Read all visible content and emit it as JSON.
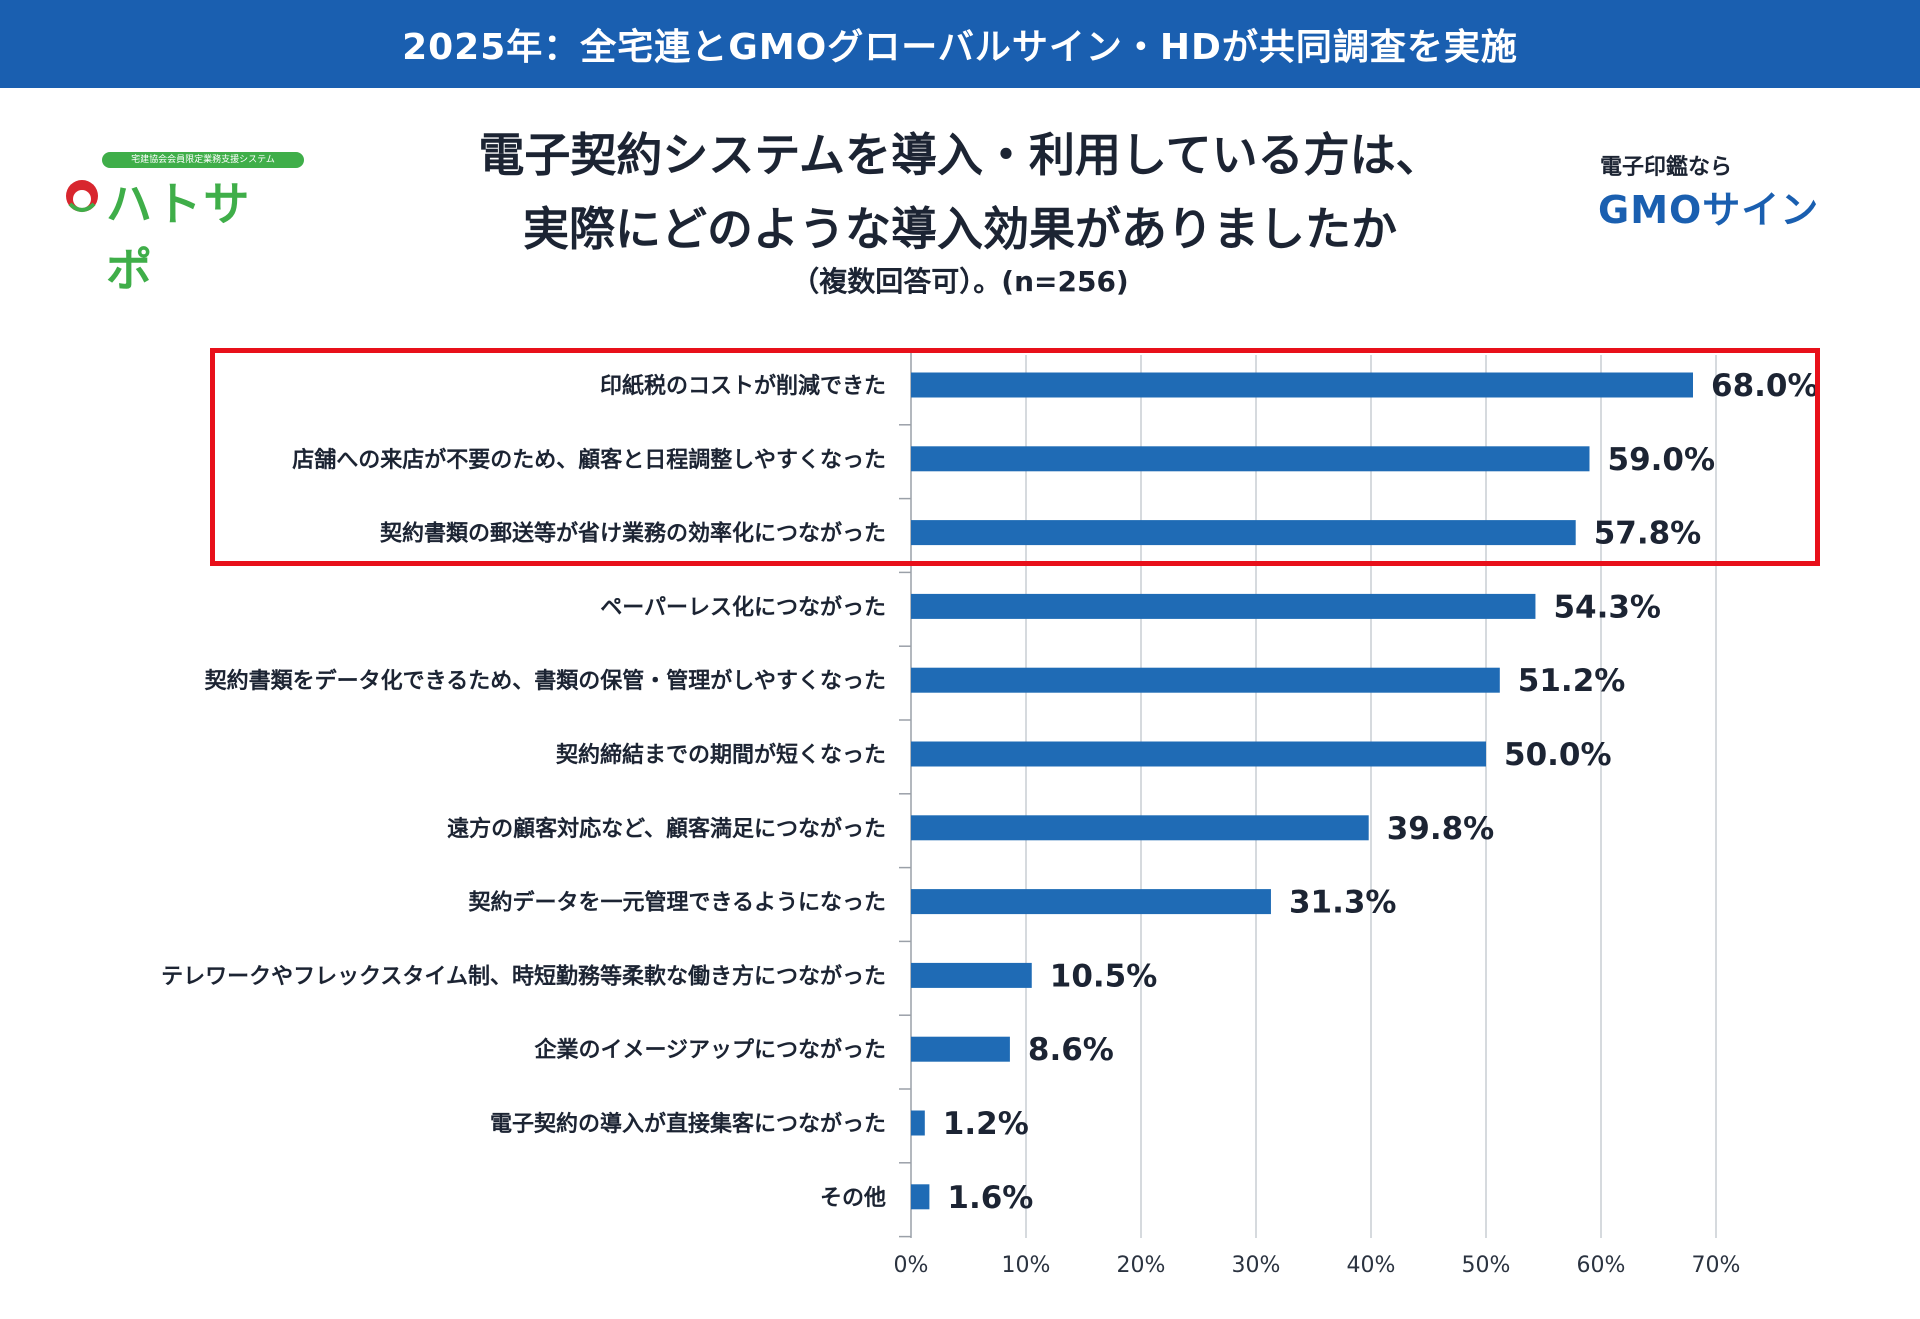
{
  "header": {
    "banner": "2025年：全宅連とGMOグローバルサイン・HDが共同調査を実施",
    "title_line1": "電子契約システムを導入・利用している方は、",
    "title_line2": "実際にどのような導入効果がありましたか",
    "subtitle": "（複数回答可）。(n=256)"
  },
  "logos": {
    "left_tagline": "宅建協会会員限定業務支援システム",
    "left_name": "ハトサポ",
    "right_sub": "電子印鑑なら",
    "right_main": "GMOサイン"
  },
  "colors": {
    "banner": "#1a5fb0",
    "bar": "#1f6bb5",
    "highlight": "#e8101a",
    "grid": "#c9cdd3",
    "logo_green": "#3fae49",
    "logo_red": "#d8262e"
  },
  "chart_data": {
    "type": "bar",
    "orientation": "horizontal",
    "categories": [
      "印紙税のコストが削減できた",
      "店舗への来店が不要のため、顧客と日程調整しやすくなった",
      "契約書類の郵送等が省け業務の効率化につながった",
      "ペーパーレス化につながった",
      "契約書類をデータ化できるため、書類の保管・管理がしやすくなった",
      "契約締結までの期間が短くなった",
      "遠方の顧客対応など、顧客満足につながった",
      "契約データを一元管理できるようになった",
      "テレワークやフレックスタイム制、時短勤務等柔軟な働き方につながった",
      "企業のイメージアップにつながった",
      "電子契約の導入が直接集客につながった",
      "その他"
    ],
    "values": [
      68.0,
      59.0,
      57.8,
      54.3,
      51.2,
      50.0,
      39.8,
      31.3,
      10.5,
      8.6,
      1.2,
      1.6
    ],
    "value_labels": [
      "68.0%",
      "59.0%",
      "57.8%",
      "54.3%",
      "51.2%",
      "50.0%",
      "39.8%",
      "31.3%",
      "10.5%",
      "8.6%",
      "1.2%",
      "1.6%"
    ],
    "xlim": [
      0,
      70
    ],
    "ticks": [
      0,
      10,
      20,
      30,
      40,
      50,
      60,
      70
    ],
    "tick_labels": [
      "0%",
      "10%",
      "20%",
      "30%",
      "40%",
      "50%",
      "60%",
      "70%"
    ],
    "highlighted_count": 3
  }
}
